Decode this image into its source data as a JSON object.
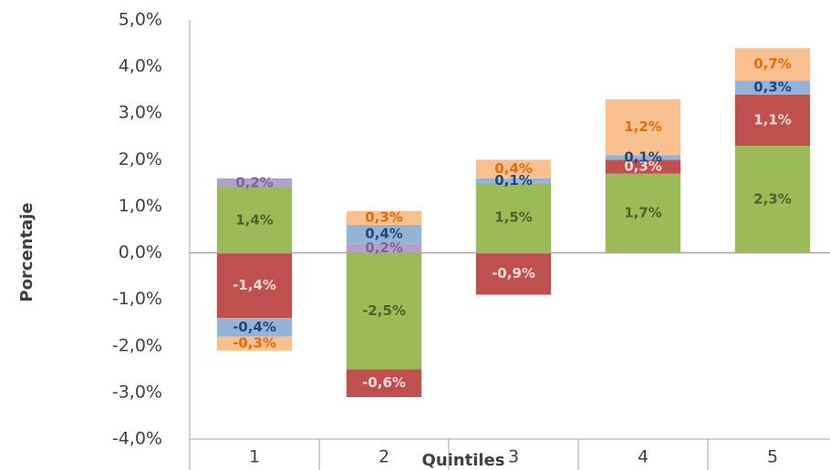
{
  "chart_data": {
    "type": "stacked_bar",
    "x_label": "Quintiles",
    "y_label": "Porcentaje",
    "categories": [
      "1",
      "2",
      "3",
      "4",
      "5"
    ],
    "series": [
      {
        "color": "#9bbb59",
        "label_color": "#4f6228",
        "values": [
          1.4,
          -2.5,
          1.5,
          1.7,
          2.3
        ],
        "value_labels": [
          "1,4%",
          "-2,5%",
          "1,5%",
          "1,7%",
          "2,3%"
        ]
      },
      {
        "color": "#c0504d",
        "label_color": "#f2dcdb",
        "values": [
          -1.4,
          -0.6,
          -0.9,
          0.3,
          1.1
        ],
        "value_labels": [
          "-1,4%",
          "-0,6%",
          "-0,9%",
          "0,3%",
          "1,1%"
        ]
      },
      {
        "color": "#b3a2c7",
        "label_color": "#8064a2",
        "values": [
          0.2,
          0.2,
          null,
          null,
          null
        ],
        "value_labels": [
          "0,2%",
          "0,2%",
          null,
          null,
          null
        ]
      },
      {
        "color": "#95b3d7",
        "label_color": "#1f497d",
        "values": [
          -0.4,
          0.4,
          0.1,
          0.1,
          0.3
        ],
        "value_labels": [
          "-0,4%",
          "0,4%",
          "0,1%",
          "0,1%",
          "0,3%"
        ]
      },
      {
        "color": "#fac090",
        "label_color": "#e46c0a",
        "values": [
          -0.3,
          0.3,
          0.4,
          1.2,
          0.7
        ],
        "value_labels": [
          "-0,3%",
          "0,3%",
          "0,4%",
          "1,2%",
          "0,7%"
        ]
      }
    ],
    "ylim": [
      -4,
      5
    ],
    "yticks": [
      {
        "value": -4,
        "label": "-4,0%"
      },
      {
        "value": -3,
        "label": "-3,0%"
      },
      {
        "value": -2,
        "label": "-2,0%"
      },
      {
        "value": -1,
        "label": "-1,0%"
      },
      {
        "value": 0,
        "label": "0,0%"
      },
      {
        "value": 1,
        "label": "1,0%"
      },
      {
        "value": 2,
        "label": "2,0%"
      },
      {
        "value": 3,
        "label": "3,0%"
      },
      {
        "value": 4,
        "label": "4,0%"
      },
      {
        "value": 5,
        "label": "5,0%"
      }
    ]
  }
}
